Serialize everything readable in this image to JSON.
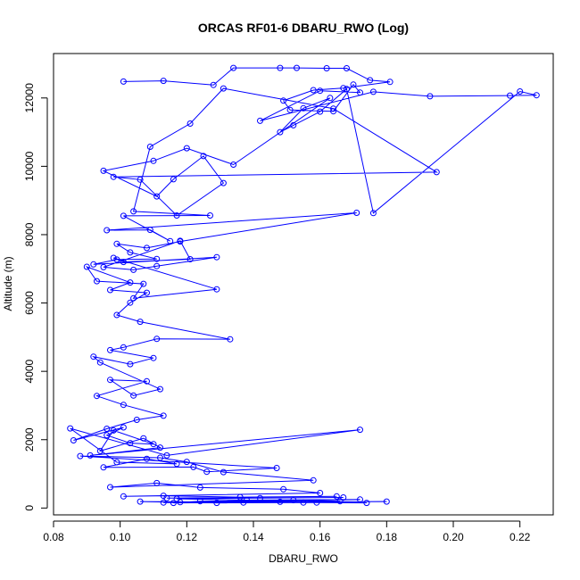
{
  "chart_data": {
    "type": "line",
    "title": "ORCAS RF01-6 DBARU_RWO (Log)",
    "xlabel": "DBARU_RWO",
    "ylabel": "Altitude (m)",
    "xlim": [
      0.08,
      0.23
    ],
    "ylim": [
      -200,
      13300
    ],
    "xticks": [
      0.08,
      0.1,
      0.12,
      0.14,
      0.16,
      0.18,
      0.2,
      0.22
    ],
    "xtick_labels": [
      "0.08",
      "0.10",
      "0.12",
      "0.14",
      "0.16",
      "0.18",
      "0.20",
      "0.22"
    ],
    "yticks": [
      0,
      2000,
      4000,
      6000,
      8000,
      10000,
      12000
    ],
    "ytick_labels": [
      "0",
      "2000",
      "4000",
      "6000",
      "8000",
      "10000",
      "12000"
    ],
    "grid": false,
    "legend": "none",
    "line_color": "#0000ff",
    "marker": "open-circle",
    "series": [
      {
        "x": [
          0.101,
          0.113,
          0.128,
          0.134,
          0.148,
          0.153,
          0.162,
          0.168,
          0.175,
          0.181,
          0.167,
          0.158,
          0.149,
          0.151,
          0.164,
          0.17,
          0.172,
          0.16,
          0.142,
          0.176,
          0.193,
          0.217,
          0.225,
          0.22,
          0.176,
          0.168,
          0.16,
          0.152,
          0.148,
          0.155,
          0.163,
          0.134,
          0.12,
          0.11,
          0.095,
          0.111,
          0.116,
          0.125,
          0.131,
          0.117,
          0.106,
          0.098,
          0.195,
          0.164,
          0.131,
          0.121,
          0.109,
          0.104,
          0.127,
          0.101,
          0.115,
          0.109,
          0.096,
          0.171,
          0.118,
          0.108,
          0.099,
          0.103,
          0.111,
          0.099,
          0.092,
          0.129,
          0.111,
          0.104,
          0.095,
          0.118,
          0.121,
          0.101,
          0.098,
          0.129,
          0.104,
          0.107,
          0.093,
          0.09,
          0.103,
          0.097,
          0.108,
          0.103,
          0.099,
          0.106,
          0.133,
          0.111,
          0.101,
          0.097,
          0.11,
          0.103,
          0.092,
          0.094,
          0.112,
          0.104,
          0.097,
          0.108,
          0.093,
          0.101,
          0.113,
          0.105,
          0.096,
          0.086,
          0.101,
          0.096,
          0.103,
          0.11,
          0.098,
          0.094,
          0.107,
          0.112,
          0.091,
          0.172,
          0.114,
          0.085,
          0.099,
          0.117,
          0.108,
          0.095,
          0.122,
          0.126,
          0.147,
          0.088,
          0.112,
          0.12,
          0.131,
          0.158,
          0.097,
          0.111,
          0.124,
          0.149,
          0.16,
          0.101,
          0.113,
          0.136,
          0.165,
          0.114,
          0.142,
          0.167,
          0.117,
          0.138,
          0.172,
          0.113,
          0.148,
          0.18,
          0.116,
          0.124,
          0.152,
          0.166,
          0.118,
          0.137,
          0.159,
          0.174,
          0.106,
          0.129,
          0.155
        ],
        "y": [
          12480,
          12500,
          12380,
          12880,
          12880,
          12880,
          12870,
          12870,
          12520,
          12470,
          12290,
          12230,
          11920,
          11650,
          11610,
          12390,
          12160,
          12210,
          11330,
          12180,
          12050,
          12070,
          12080,
          12190,
          8630,
          12260,
          11600,
          11200,
          11000,
          11700,
          12000,
          10050,
          10530,
          10160,
          9870,
          9120,
          9620,
          10300,
          9510,
          8560,
          9610,
          9690,
          9830,
          11690,
          12280,
          11250,
          10570,
          8680,
          8560,
          8550,
          7810,
          8140,
          8130,
          8640,
          7800,
          7610,
          7730,
          7480,
          7290,
          7270,
          7130,
          7340,
          7080,
          6970,
          7050,
          7820,
          7280,
          7200,
          7320,
          6400,
          6140,
          6560,
          6640,
          7060,
          6600,
          6380,
          6300,
          6010,
          5650,
          5450,
          4940,
          4950,
          4700,
          4620,
          4390,
          4210,
          4430,
          4260,
          3480,
          3290,
          3750,
          3710,
          3280,
          3020,
          2700,
          2580,
          2320,
          1980,
          2360,
          2130,
          1900,
          1870,
          2270,
          1670,
          2040,
          1770,
          1540,
          2290,
          1540,
          2330,
          1340,
          1290,
          1440,
          1190,
          1200,
          1060,
          1170,
          1520,
          1470,
          1350,
          1050,
          810,
          610,
          730,
          600,
          550,
          440,
          340,
          360,
          320,
          340,
          290,
          290,
          310,
          270,
          230,
          250,
          160,
          180,
          190,
          150,
          200,
          230,
          200,
          170,
          160,
          160,
          150,
          190,
          150,
          160
        ]
      }
    ]
  }
}
